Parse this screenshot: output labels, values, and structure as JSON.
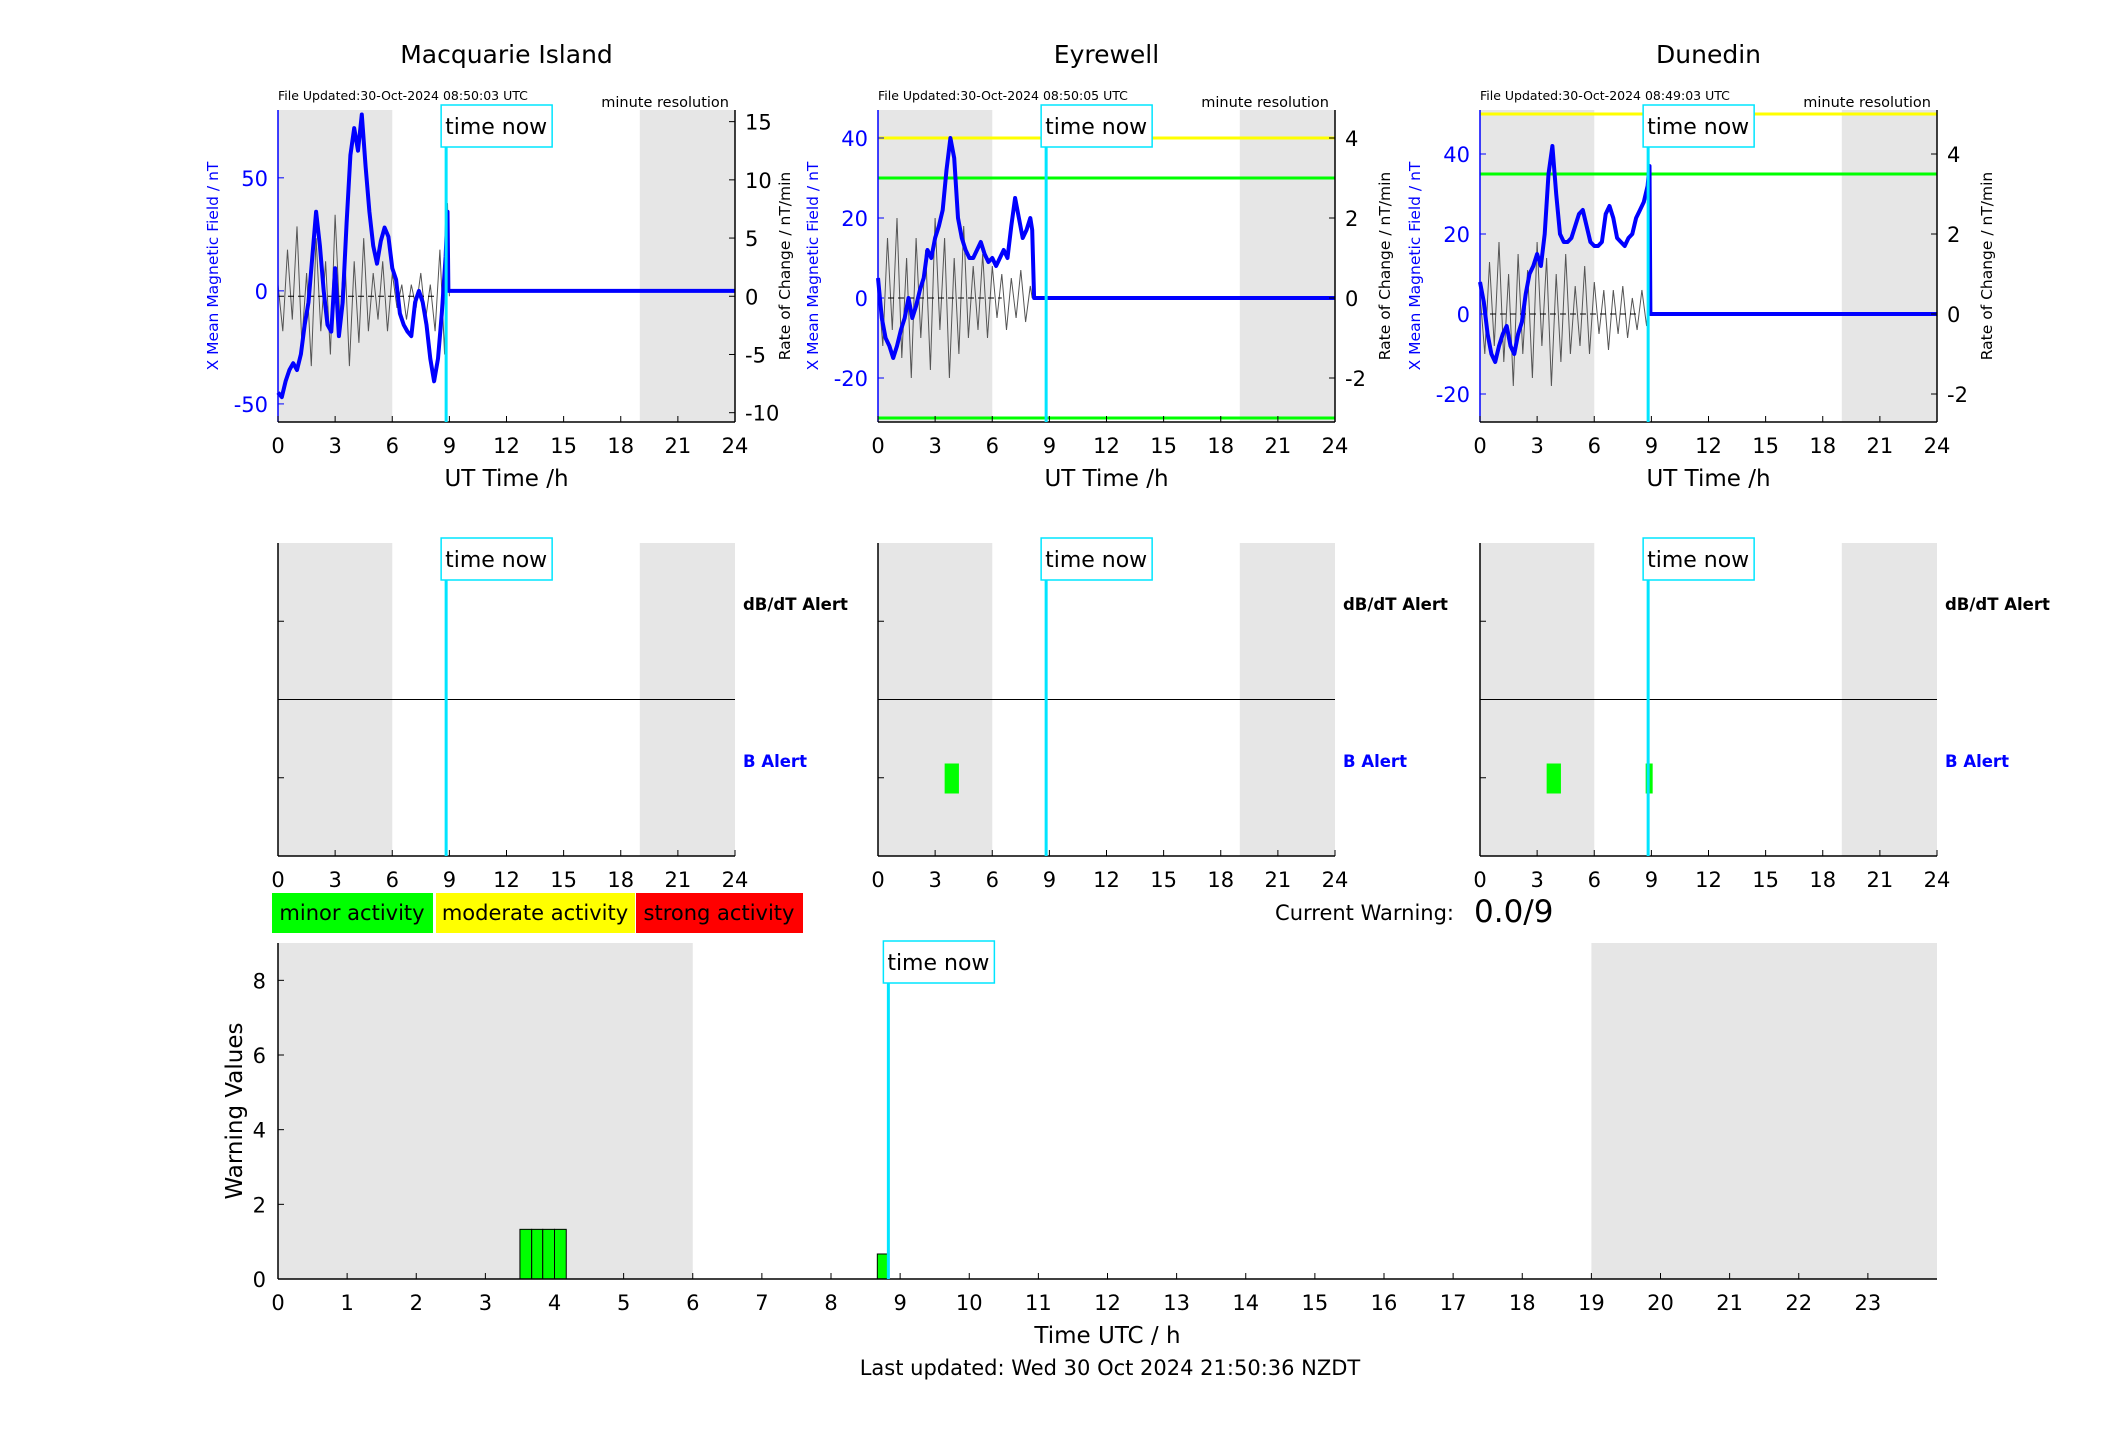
{
  "time_now_label": "time now",
  "minute_resolution_label": "minute resolution",
  "colors": {
    "b_field": "#0000ff",
    "rate": "#555555",
    "time_now": "#00e5ff",
    "night": "#e6e6e6",
    "minor": "#00ff00",
    "moderate": "#ffff00",
    "strong": "#ff0000"
  },
  "stations": [
    {
      "id": "macquarie",
      "title": "Macquarie Island",
      "file_updated": "File Updated:30-Oct-2024 08:50:03 UTC",
      "ylabel_left": "X Mean Magnetic Field / nT",
      "ylabel_right": "Rate of Change / nT/min",
      "xlabel": "UT Time /h",
      "xlim": [
        0,
        24
      ],
      "xticks": [
        "0",
        "3",
        "6",
        "9",
        "12",
        "15",
        "18",
        "21",
        "24"
      ],
      "ylim_left": [
        -58,
        80
      ],
      "yticks_left": [
        -50,
        0,
        50
      ],
      "ylim_right": [
        -10.8,
        16
      ],
      "yticks_right": [
        -10,
        -5,
        0,
        5,
        10,
        15
      ],
      "night_bands": [
        [
          0,
          6
        ],
        [
          19,
          24
        ]
      ],
      "time_now": 8.83,
      "thresholds_right": [],
      "b_series": [
        [
          0,
          -45
        ],
        [
          0.2,
          -47
        ],
        [
          0.4,
          -40
        ],
        [
          0.6,
          -35
        ],
        [
          0.8,
          -32
        ],
        [
          1,
          -35
        ],
        [
          1.2,
          -28
        ],
        [
          1.4,
          -15
        ],
        [
          1.6,
          -5
        ],
        [
          1.8,
          15
        ],
        [
          2,
          35
        ],
        [
          2.2,
          20
        ],
        [
          2.4,
          0
        ],
        [
          2.6,
          -15
        ],
        [
          2.8,
          -18
        ],
        [
          3,
          10
        ],
        [
          3.2,
          -20
        ],
        [
          3.4,
          -5
        ],
        [
          3.6,
          30
        ],
        [
          3.8,
          60
        ],
        [
          4,
          72
        ],
        [
          4.2,
          62
        ],
        [
          4.4,
          78
        ],
        [
          4.6,
          55
        ],
        [
          4.8,
          35
        ],
        [
          5,
          20
        ],
        [
          5.2,
          12
        ],
        [
          5.4,
          22
        ],
        [
          5.6,
          28
        ],
        [
          5.8,
          24
        ],
        [
          6,
          10
        ],
        [
          6.2,
          5
        ],
        [
          6.4,
          -10
        ],
        [
          6.6,
          -15
        ],
        [
          6.8,
          -18
        ],
        [
          7,
          -20
        ],
        [
          7.2,
          -5
        ],
        [
          7.4,
          0
        ],
        [
          7.6,
          -5
        ],
        [
          7.8,
          -15
        ],
        [
          8,
          -30
        ],
        [
          8.2,
          -40
        ],
        [
          8.4,
          -30
        ],
        [
          8.6,
          -10
        ],
        [
          8.8,
          15
        ],
        [
          8.9,
          35
        ],
        [
          8.95,
          0
        ],
        [
          24,
          0
        ]
      ],
      "rate_series": [
        [
          0,
          1
        ],
        [
          0.25,
          -3
        ],
        [
          0.5,
          4
        ],
        [
          0.75,
          -2
        ],
        [
          1,
          6
        ],
        [
          1.25,
          -4
        ],
        [
          1.5,
          2
        ],
        [
          1.75,
          -6
        ],
        [
          2,
          5
        ],
        [
          2.25,
          -3
        ],
        [
          2.5,
          3
        ],
        [
          2.75,
          -5
        ],
        [
          3,
          7
        ],
        [
          3.25,
          -2
        ],
        [
          3.5,
          4
        ],
        [
          3.75,
          -6
        ],
        [
          4,
          3
        ],
        [
          4.25,
          -4
        ],
        [
          4.5,
          5
        ],
        [
          4.75,
          -3
        ],
        [
          5,
          2
        ],
        [
          5.25,
          -2
        ],
        [
          5.5,
          3
        ],
        [
          5.75,
          -3
        ],
        [
          6,
          2
        ],
        [
          6.25,
          -1
        ],
        [
          6.5,
          1
        ],
        [
          6.75,
          -2
        ],
        [
          7,
          1
        ],
        [
          7.25,
          -1
        ],
        [
          7.5,
          2
        ],
        [
          7.75,
          -2
        ],
        [
          8,
          1
        ],
        [
          8.25,
          -3
        ],
        [
          8.5,
          4
        ],
        [
          8.75,
          -5
        ],
        [
          8.9,
          8
        ],
        [
          9,
          0
        ]
      ],
      "rate_baseline_end": 8.2
    },
    {
      "id": "eyrewell",
      "title": "Eyrewell",
      "file_updated": "File Updated:30-Oct-2024 08:50:05 UTC",
      "ylabel_left": "X Mean Magnetic Field / nT",
      "ylabel_right": "Rate of Change / nT/min",
      "xlabel": "UT Time /h",
      "xlim": [
        0,
        24
      ],
      "xticks": [
        "0",
        "3",
        "6",
        "9",
        "12",
        "15",
        "18",
        "21",
        "24"
      ],
      "ylim_left": [
        -31,
        47
      ],
      "yticks_left": [
        -20,
        0,
        20,
        40
      ],
      "ylim_right": [
        -3.1,
        4.7
      ],
      "yticks_right": [
        -2,
        0,
        2,
        4
      ],
      "night_bands": [
        [
          0,
          6
        ],
        [
          19,
          24
        ]
      ],
      "time_now": 8.83,
      "thresholds_right": [
        {
          "value": 4,
          "color": "#ffff00"
        },
        {
          "value": 3,
          "color": "#00ff00"
        },
        {
          "value": -3,
          "color": "#00ff00"
        }
      ],
      "b_series": [
        [
          0,
          5
        ],
        [
          0.2,
          -5
        ],
        [
          0.4,
          -10
        ],
        [
          0.6,
          -12
        ],
        [
          0.8,
          -15
        ],
        [
          1,
          -12
        ],
        [
          1.2,
          -8
        ],
        [
          1.4,
          -5
        ],
        [
          1.6,
          0
        ],
        [
          1.8,
          -5
        ],
        [
          2,
          -2
        ],
        [
          2.2,
          2
        ],
        [
          2.4,
          5
        ],
        [
          2.6,
          12
        ],
        [
          2.8,
          10
        ],
        [
          3,
          15
        ],
        [
          3.2,
          18
        ],
        [
          3.4,
          22
        ],
        [
          3.6,
          32
        ],
        [
          3.8,
          40
        ],
        [
          4,
          35
        ],
        [
          4.2,
          20
        ],
        [
          4.4,
          15
        ],
        [
          4.6,
          12
        ],
        [
          4.8,
          10
        ],
        [
          5,
          10
        ],
        [
          5.2,
          12
        ],
        [
          5.4,
          14
        ],
        [
          5.6,
          11
        ],
        [
          5.8,
          9
        ],
        [
          6,
          10
        ],
        [
          6.2,
          8
        ],
        [
          6.4,
          10
        ],
        [
          6.6,
          12
        ],
        [
          6.8,
          10
        ],
        [
          7,
          18
        ],
        [
          7.2,
          25
        ],
        [
          7.4,
          20
        ],
        [
          7.6,
          15
        ],
        [
          7.8,
          17
        ],
        [
          8,
          20
        ],
        [
          8.1,
          17
        ],
        [
          8.2,
          0
        ],
        [
          24,
          0
        ]
      ],
      "rate_series": [
        [
          0,
          0.4
        ],
        [
          0.25,
          -1.2
        ],
        [
          0.5,
          1.5
        ],
        [
          0.75,
          -0.8
        ],
        [
          1,
          2
        ],
        [
          1.25,
          -1.5
        ],
        [
          1.5,
          1
        ],
        [
          1.75,
          -2
        ],
        [
          2,
          1.5
        ],
        [
          2.25,
          -1
        ],
        [
          2.5,
          1.2
        ],
        [
          2.75,
          -1.8
        ],
        [
          3,
          2
        ],
        [
          3.25,
          -0.8
        ],
        [
          3.5,
          1.5
        ],
        [
          3.75,
          -2
        ],
        [
          4,
          1
        ],
        [
          4.25,
          -1.4
        ],
        [
          4.5,
          1.8
        ],
        [
          4.75,
          -1
        ],
        [
          5,
          0.8
        ],
        [
          5.25,
          -0.8
        ],
        [
          5.5,
          1.1
        ],
        [
          5.75,
          -1
        ],
        [
          6,
          0.8
        ],
        [
          6.25,
          -0.5
        ],
        [
          6.5,
          0.6
        ],
        [
          6.75,
          -0.8
        ],
        [
          7,
          0.5
        ],
        [
          7.25,
          -0.5
        ],
        [
          7.5,
          0.7
        ],
        [
          7.75,
          -0.6
        ],
        [
          8,
          0.3
        ],
        [
          8.1,
          0
        ]
      ],
      "rate_baseline_end": 6.5
    },
    {
      "id": "dunedin",
      "title": "Dunedin",
      "file_updated": "File Updated:30-Oct-2024 08:49:03 UTC",
      "ylabel_left": "X Mean Magnetic Field / nT",
      "ylabel_right": "Rate of Change / nT/min",
      "xlabel": "UT Time /h",
      "xlim": [
        0,
        24
      ],
      "xticks": [
        "0",
        "3",
        "6",
        "9",
        "12",
        "15",
        "18",
        "21",
        "24"
      ],
      "ylim_left": [
        -27,
        51
      ],
      "yticks_left": [
        -20,
        0,
        20,
        40
      ],
      "ylim_right": [
        -2.7,
        5.1
      ],
      "yticks_right": [
        -2,
        0,
        2,
        4
      ],
      "night_bands": [
        [
          0,
          6
        ],
        [
          19,
          24
        ]
      ],
      "time_now": 8.83,
      "thresholds_right": [
        {
          "value": 5,
          "color": "#ffff00"
        },
        {
          "value": 3.5,
          "color": "#00ff00"
        }
      ],
      "b_series": [
        [
          0,
          8
        ],
        [
          0.2,
          3
        ],
        [
          0.4,
          -5
        ],
        [
          0.6,
          -10
        ],
        [
          0.8,
          -12
        ],
        [
          1,
          -8
        ],
        [
          1.2,
          -5
        ],
        [
          1.4,
          -3
        ],
        [
          1.6,
          -8
        ],
        [
          1.8,
          -10
        ],
        [
          2,
          -5
        ],
        [
          2.2,
          -2
        ],
        [
          2.4,
          5
        ],
        [
          2.6,
          10
        ],
        [
          2.8,
          12
        ],
        [
          3,
          15
        ],
        [
          3.2,
          12
        ],
        [
          3.4,
          20
        ],
        [
          3.6,
          35
        ],
        [
          3.8,
          42
        ],
        [
          4,
          30
        ],
        [
          4.2,
          20
        ],
        [
          4.4,
          18
        ],
        [
          4.6,
          18
        ],
        [
          4.8,
          19
        ],
        [
          5,
          22
        ],
        [
          5.2,
          25
        ],
        [
          5.4,
          26
        ],
        [
          5.6,
          22
        ],
        [
          5.8,
          18
        ],
        [
          6,
          17
        ],
        [
          6.2,
          17
        ],
        [
          6.4,
          18
        ],
        [
          6.6,
          25
        ],
        [
          6.8,
          27
        ],
        [
          7,
          24
        ],
        [
          7.2,
          19
        ],
        [
          7.4,
          18
        ],
        [
          7.6,
          17
        ],
        [
          7.8,
          19
        ],
        [
          8,
          20
        ],
        [
          8.2,
          24
        ],
        [
          8.4,
          26
        ],
        [
          8.6,
          28
        ],
        [
          8.8,
          32
        ],
        [
          8.9,
          37
        ],
        [
          8.95,
          0
        ],
        [
          24,
          0
        ]
      ],
      "rate_series": [
        [
          0,
          0.5
        ],
        [
          0.25,
          -1
        ],
        [
          0.5,
          1.3
        ],
        [
          0.75,
          -0.8
        ],
        [
          1,
          1.8
        ],
        [
          1.25,
          -1.2
        ],
        [
          1.5,
          1
        ],
        [
          1.75,
          -1.8
        ],
        [
          2,
          1.5
        ],
        [
          2.25,
          -1
        ],
        [
          2.5,
          1.1
        ],
        [
          2.75,
          -1.6
        ],
        [
          3,
          1.8
        ],
        [
          3.25,
          -0.8
        ],
        [
          3.5,
          1.4
        ],
        [
          3.75,
          -1.8
        ],
        [
          4,
          1
        ],
        [
          4.25,
          -1.2
        ],
        [
          4.5,
          1.5
        ],
        [
          4.75,
          -1
        ],
        [
          5,
          0.7
        ],
        [
          5.25,
          -0.8
        ],
        [
          5.5,
          1.2
        ],
        [
          5.75,
          -1
        ],
        [
          6,
          0.8
        ],
        [
          6.25,
          -0.5
        ],
        [
          6.5,
          0.6
        ],
        [
          6.75,
          -0.9
        ],
        [
          7,
          0.6
        ],
        [
          7.25,
          -0.5
        ],
        [
          7.5,
          0.7
        ],
        [
          7.75,
          -0.6
        ],
        [
          8,
          0.4
        ],
        [
          8.25,
          -0.4
        ],
        [
          8.5,
          0.6
        ],
        [
          8.75,
          -0.3
        ],
        [
          8.9,
          0.5
        ],
        [
          9,
          0
        ]
      ],
      "rate_baseline_end": 8.2
    }
  ],
  "alerts": [
    {
      "station": "macquarie",
      "dbdt_label": "dB/dT Alert",
      "b_label": "B Alert",
      "b_blocks": [],
      "dbdt_blocks": []
    },
    {
      "station": "eyrewell",
      "dbdt_label": "dB/dT Alert",
      "b_label": "B Alert",
      "b_blocks": [
        [
          3.5,
          4.25
        ]
      ],
      "dbdt_blocks": []
    },
    {
      "station": "dunedin",
      "dbdt_label": "dB/dT Alert",
      "b_label": "B Alert",
      "b_blocks": [
        [
          3.5,
          4.25
        ],
        [
          8.7,
          9.0
        ]
      ],
      "dbdt_blocks": []
    }
  ],
  "legend": [
    {
      "label": "minor activity",
      "color": "#00ff00"
    },
    {
      "label": "moderate activity",
      "color": "#ffff00"
    },
    {
      "label": "strong activity",
      "color": "#ff0000"
    }
  ],
  "current_warning": {
    "label": "Current Warning:",
    "value": "0.0/9"
  },
  "chart_data": {
    "type": "bar",
    "ylabel": "Warning Values",
    "xlabel": "Time UTC / h",
    "xlim": [
      0,
      24
    ],
    "ylim": [
      0,
      9
    ],
    "xticks": [
      "0",
      "1",
      "2",
      "3",
      "4",
      "5",
      "6",
      "7",
      "8",
      "9",
      "10",
      "11",
      "12",
      "13",
      "14",
      "15",
      "16",
      "17",
      "18",
      "19",
      "20",
      "21",
      "22",
      "23"
    ],
    "yticks": [
      "0",
      "2",
      "4",
      "6",
      "8"
    ],
    "night_bands": [
      [
        0,
        6
      ],
      [
        19,
        24
      ]
    ],
    "time_now": 8.83,
    "bars": [
      {
        "x0": 3.5,
        "x1": 3.67,
        "value": 1.33
      },
      {
        "x0": 3.67,
        "x1": 3.83,
        "value": 1.33
      },
      {
        "x0": 3.83,
        "x1": 4.0,
        "value": 1.33
      },
      {
        "x0": 4.0,
        "x1": 4.17,
        "value": 1.33
      },
      {
        "x0": 8.67,
        "x1": 8.83,
        "value": 0.67
      }
    ]
  },
  "last_updated": "Last updated: Wed 30 Oct 2024 21:50:36 NZDT"
}
